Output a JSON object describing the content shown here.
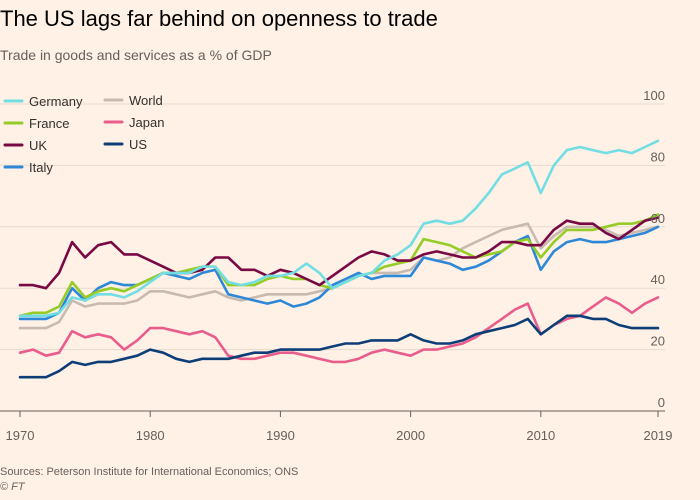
{
  "title": "The US lags far behind on openness to trade",
  "subtitle": "Trade in goods and services as a % of GDP",
  "source": "Sources: Peterson Institute for International Economics; ONS",
  "credit": "© FT",
  "chart_data": {
    "type": "line",
    "title": "The US lags far behind on openness to trade",
    "subtitle": "Trade in goods and services as a % of GDP",
    "xlabel": "",
    "ylabel": "",
    "xlim": [
      1970,
      2019
    ],
    "ylim": [
      0,
      100
    ],
    "x_ticks": [
      "1970",
      "1980",
      "1990",
      "2000",
      "2010",
      "2019"
    ],
    "y_ticks": [
      "0",
      "20",
      "40",
      "60",
      "80",
      "100"
    ],
    "y_axis_side": "right",
    "grid": "horizontal",
    "legend_position": "top-left",
    "x": [
      1970,
      1971,
      1972,
      1973,
      1974,
      1975,
      1976,
      1977,
      1978,
      1979,
      1980,
      1981,
      1982,
      1983,
      1984,
      1985,
      1986,
      1987,
      1988,
      1989,
      1990,
      1991,
      1992,
      1993,
      1994,
      1995,
      1996,
      1997,
      1998,
      1999,
      2000,
      2001,
      2002,
      2003,
      2004,
      2005,
      2006,
      2007,
      2008,
      2009,
      2010,
      2011,
      2012,
      2013,
      2014,
      2015,
      2016,
      2017,
      2018,
      2019
    ],
    "series": [
      {
        "name": "Germany",
        "color": "#72dee4",
        "values": [
          31,
          31,
          31,
          32,
          37,
          36,
          38,
          38,
          37,
          39,
          42,
          45,
          45,
          45,
          47,
          47,
          42,
          41,
          42,
          44,
          44,
          45,
          48,
          45,
          40,
          42,
          44,
          45,
          49,
          51,
          54,
          61,
          62,
          61,
          62,
          66,
          71,
          77,
          79,
          81,
          71,
          80,
          85,
          86,
          85,
          84,
          85,
          84,
          86,
          88
        ]
      },
      {
        "name": "France",
        "color": "#96cc28",
        "values": [
          31,
          32,
          32,
          34,
          42,
          37,
          39,
          40,
          39,
          41,
          43,
          45,
          45,
          46,
          47,
          47,
          41,
          41,
          41,
          43,
          44,
          43,
          43,
          41,
          40,
          42,
          44,
          45,
          47,
          48,
          49,
          56,
          55,
          54,
          52,
          50,
          51,
          52,
          55,
          56,
          50,
          55,
          59,
          59,
          59,
          60,
          61,
          61,
          62,
          64
        ]
      },
      {
        "name": "UK",
        "color": "#790945",
        "values": [
          41,
          41,
          40,
          45,
          55,
          50,
          54,
          55,
          51,
          51,
          49,
          47,
          45,
          45,
          46,
          50,
          50,
          46,
          46,
          44,
          46,
          45,
          43,
          41,
          44,
          47,
          50,
          52,
          51,
          49,
          49,
          51,
          52,
          51,
          50,
          50,
          52,
          55,
          55,
          54,
          54,
          59,
          62,
          61,
          61,
          58,
          56,
          59,
          62,
          63
        ]
      },
      {
        "name": "Italy",
        "color": "#2e88d8",
        "values": [
          30,
          30,
          30,
          32,
          40,
          36,
          40,
          42,
          41,
          41,
          43,
          45,
          44,
          43,
          45,
          46,
          38,
          37,
          36,
          35,
          36,
          34,
          35,
          37,
          41,
          43,
          45,
          43,
          44,
          44,
          44,
          50,
          49,
          48,
          46,
          47,
          49,
          52,
          55,
          57,
          46,
          52,
          55,
          56,
          55,
          55,
          56,
          57,
          58,
          60
        ]
      },
      {
        "name": "World",
        "color": "#c8bab0",
        "values": [
          27,
          27,
          27,
          29,
          36,
          34,
          35,
          35,
          35,
          36,
          39,
          39,
          38,
          37,
          38,
          39,
          37,
          36,
          37,
          38,
          38,
          38,
          38,
          39,
          40,
          42,
          44,
          45,
          45,
          45,
          46,
          50,
          49,
          50,
          53,
          55,
          57,
          59,
          60,
          61,
          53,
          57,
          60,
          60,
          60,
          59,
          57,
          58,
          59,
          60
        ]
      },
      {
        "name": "Japan",
        "color": "#e95d8c",
        "values": [
          19,
          20,
          18,
          19,
          26,
          24,
          25,
          24,
          20,
          23,
          27,
          27,
          26,
          25,
          26,
          24,
          18,
          17,
          17,
          18,
          19,
          19,
          18,
          17,
          16,
          16,
          17,
          19,
          20,
          19,
          18,
          20,
          20,
          21,
          22,
          24,
          27,
          30,
          33,
          35,
          25,
          28,
          30,
          31,
          34,
          37,
          35,
          32,
          35,
          37
        ]
      },
      {
        "name": "US",
        "color": "#0d3e78",
        "values": [
          11,
          11,
          11,
          13,
          16,
          15,
          16,
          16,
          17,
          18,
          20,
          19,
          17,
          16,
          17,
          17,
          17,
          18,
          19,
          19,
          20,
          20,
          20,
          20,
          21,
          22,
          22,
          23,
          23,
          23,
          25,
          23,
          22,
          22,
          23,
          25,
          26,
          27,
          28,
          30,
          25,
          28,
          31,
          31,
          30,
          30,
          28,
          27,
          27,
          27
        ]
      }
    ]
  }
}
